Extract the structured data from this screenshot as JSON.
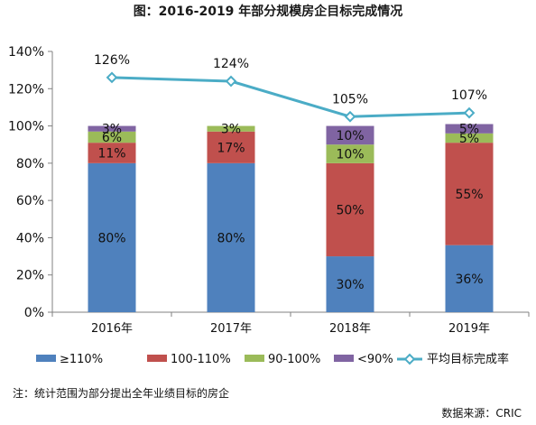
{
  "chart_data": {
    "type": "bar",
    "stacked": true,
    "title": "图：2016-2019 年部分规模房企目标完成情况",
    "categories": [
      "2016年",
      "2017年",
      "2018年",
      "2019年"
    ],
    "ylim": [
      0,
      140
    ],
    "yticks": [
      "0%",
      "20%",
      "40%",
      "60%",
      "80%",
      "100%",
      "120%",
      "140%"
    ],
    "ytick_values": [
      0,
      20,
      40,
      60,
      80,
      100,
      120,
      140
    ],
    "grid": false,
    "legend_position": "bottom",
    "series": [
      {
        "name": "≥110%",
        "color": "#4f81bd",
        "values": [
          80,
          80,
          30,
          36
        ],
        "labels": [
          "80%",
          "80%",
          "30%",
          "36%"
        ]
      },
      {
        "name": "100-110%",
        "color": "#c0504d",
        "values": [
          11,
          17,
          50,
          55
        ],
        "labels": [
          "11%",
          "17%",
          "50%",
          "55%"
        ]
      },
      {
        "name": "90-100%",
        "color": "#9bbb59",
        "values": [
          6,
          3,
          10,
          5
        ],
        "labels": [
          "6%",
          "3%",
          "10%",
          "5%"
        ]
      },
      {
        "name": "<90%",
        "color": "#8064a2",
        "values": [
          3,
          0,
          10,
          5
        ],
        "labels": [
          "3%",
          "",
          "10%",
          "5%"
        ]
      }
    ],
    "line_series": {
      "name": "平均目标完成率",
      "color": "#4bacc6",
      "values": [
        126,
        124,
        105,
        107
      ],
      "labels": [
        "126%",
        "124%",
        "105%",
        "107%"
      ]
    },
    "note": "注：统计范围为部分提出全年业绩目标的房企",
    "source": "数据来源：CRIC"
  }
}
